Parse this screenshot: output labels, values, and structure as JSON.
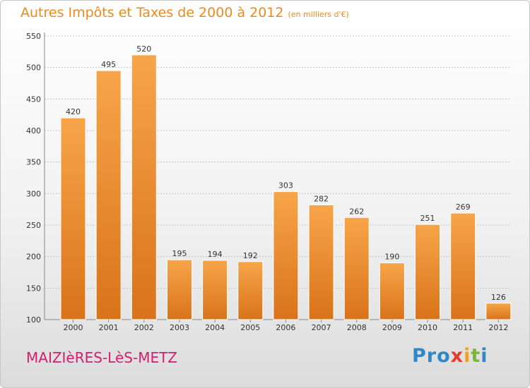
{
  "header": {
    "title": "Autres Impôts et Taxes de 2000 à 2012",
    "unit": "(en milliers d'€)"
  },
  "footer": {
    "commune": "MAIZIèRES-LèS-METZ",
    "logo": [
      "Pro",
      "x",
      "i",
      "t",
      "i"
    ]
  },
  "colors": {
    "title": "#ed8a1e",
    "bar_light": "#f7a54a",
    "bar_dark": "#d9731a",
    "commune": "#d21f6e"
  },
  "chart_data": {
    "type": "bar",
    "categories": [
      "2000",
      "2001",
      "2002",
      "2003",
      "2004",
      "2005",
      "2006",
      "2007",
      "2008",
      "2009",
      "2010",
      "2011",
      "2012"
    ],
    "values": [
      420,
      495,
      520,
      195,
      194,
      192,
      303,
      282,
      262,
      190,
      251,
      269,
      126
    ],
    "title": "Autres Impôts et Taxes de 2000 à 2012",
    "subtitle": "(en milliers d'€)",
    "ylim": [
      100,
      550
    ],
    "yticks": [
      100,
      150,
      200,
      250,
      300,
      350,
      400,
      450,
      500,
      550
    ],
    "grid": true,
    "data_labels": true
  }
}
